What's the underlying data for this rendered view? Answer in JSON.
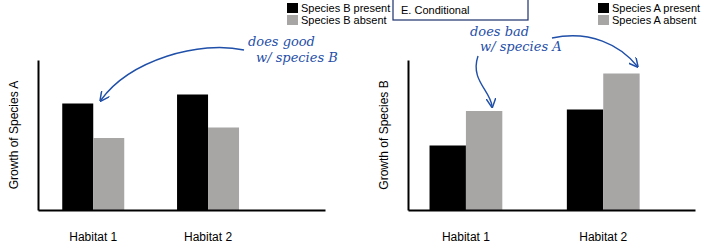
{
  "panel_label": "E. Conditional",
  "chart_data": [
    {
      "type": "bar",
      "categories": [
        "Habitat 1",
        "Habitat 2"
      ],
      "series": [
        {
          "name": "Species B present",
          "color": "#000000",
          "values": [
            71,
            77
          ]
        },
        {
          "name": "Species B absent",
          "color": "#a8a5a5",
          "values": [
            48,
            55
          ]
        }
      ],
      "y_label": "Growth of Species A",
      "ylim": [
        0,
        100
      ],
      "yticks": [],
      "tick_labels": "x",
      "legend": "top right",
      "annotations": [
        "does good",
        "w/ species B"
      ]
    },
    {
      "type": "bar",
      "categories": [
        "Habitat 1",
        "Habitat 2"
      ],
      "series": [
        {
          "name": "Species A present",
          "color": "#000000",
          "values": [
            43,
            67
          ]
        },
        {
          "name": "Species A absent",
          "color": "#a8a5a5",
          "values": [
            66,
            91
          ]
        }
      ],
      "y_label": "Growth of Species B",
      "ylim": [
        0,
        100
      ],
      "yticks": [],
      "tick_labels": "x",
      "legend": "top right",
      "annotations": [
        "does bad",
        "w/ species A"
      ]
    }
  ]
}
